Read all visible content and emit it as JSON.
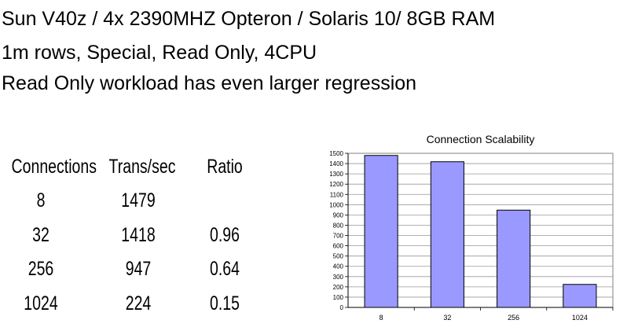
{
  "headlines": [
    "Sun V40z / 4x 2390MHZ Opteron / Solaris 10/ 8GB RAM",
    "1m rows,  Special, Read Only,  4CPU",
    "Read Only workload has even larger regression"
  ],
  "table": {
    "headers": [
      "Connections",
      "Trans/sec",
      "Ratio"
    ],
    "rows": [
      [
        "8",
        "1479",
        ""
      ],
      [
        "32",
        "1418",
        "0.96"
      ],
      [
        "256",
        "947",
        "0.64"
      ],
      [
        "1024",
        "224",
        "0.15"
      ]
    ]
  },
  "chart_data": {
    "type": "bar",
    "title": "Connection Scalability",
    "categories": [
      "8",
      "32",
      "256",
      "1024"
    ],
    "values": [
      1479,
      1418,
      947,
      224
    ],
    "ylim": [
      0,
      1500
    ],
    "ytick_step": 100,
    "grid": true,
    "legend": "none",
    "bar_color": "#9999ff",
    "plot_bg": "#ffffff"
  }
}
